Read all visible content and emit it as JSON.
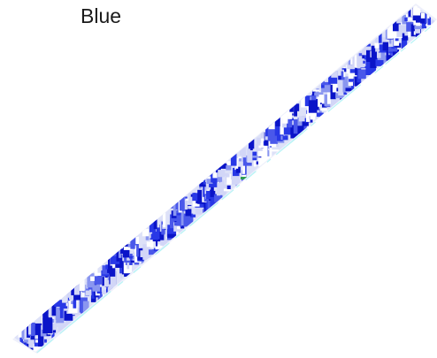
{
  "title": "Blue",
  "colors": {
    "deep_blue": "#0a14c8",
    "royal_blue": "#2838e6",
    "periwinkle": "#8a96f0",
    "pale_lavender": "#d2d6f7",
    "cyan_tint": "#b8f4f6",
    "green_fleck": "#2f9e52",
    "background": "#ffffff"
  },
  "image": {
    "subject": "glitch-art-diagonal-strip-icon"
  }
}
